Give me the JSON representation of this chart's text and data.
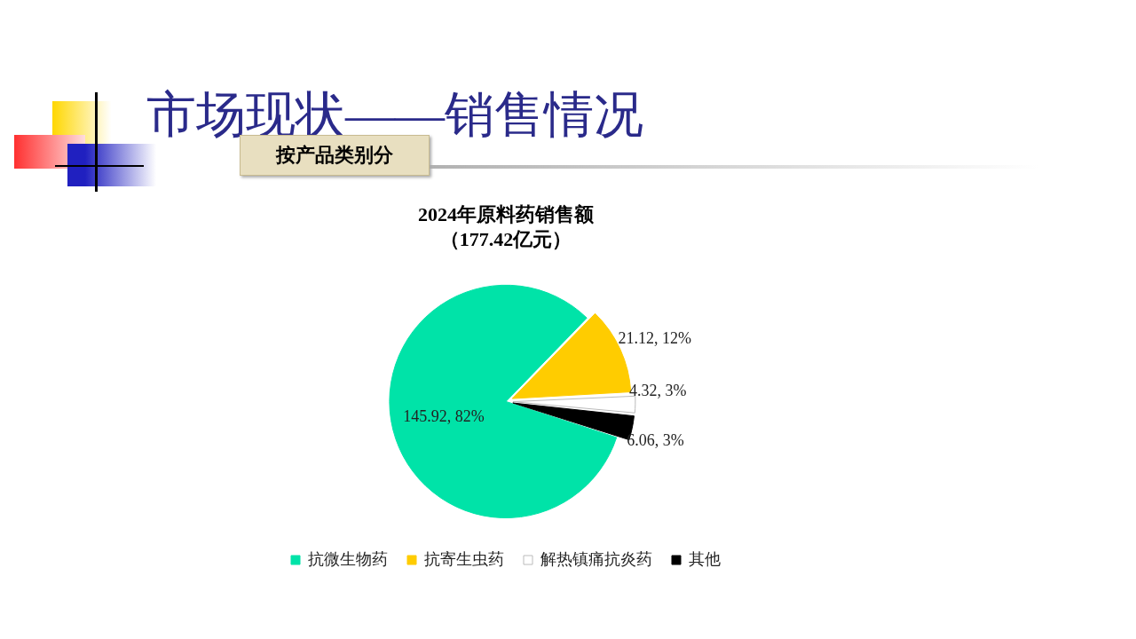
{
  "chart_data": {
    "type": "pie",
    "title": "2024年原料药销售额",
    "subtitle": "（177.42亿元）",
    "annotations": [
      "市场现状——销售情况",
      "按产品类别分"
    ],
    "categories": [
      "抗微生物药",
      "抗寄生虫药",
      "解热镇痛抗炎药",
      "其他"
    ],
    "values": [
      145.92,
      21.12,
      4.32,
      6.06
    ],
    "colors": [
      "#00e3a8",
      "#ffcc00",
      "#ffffff",
      "#000000"
    ],
    "value_labels": [
      "145.92, 82%",
      "21.12, 12%",
      "4.32, 3%",
      "6.06, 3%"
    ],
    "legend": "bottom"
  }
}
